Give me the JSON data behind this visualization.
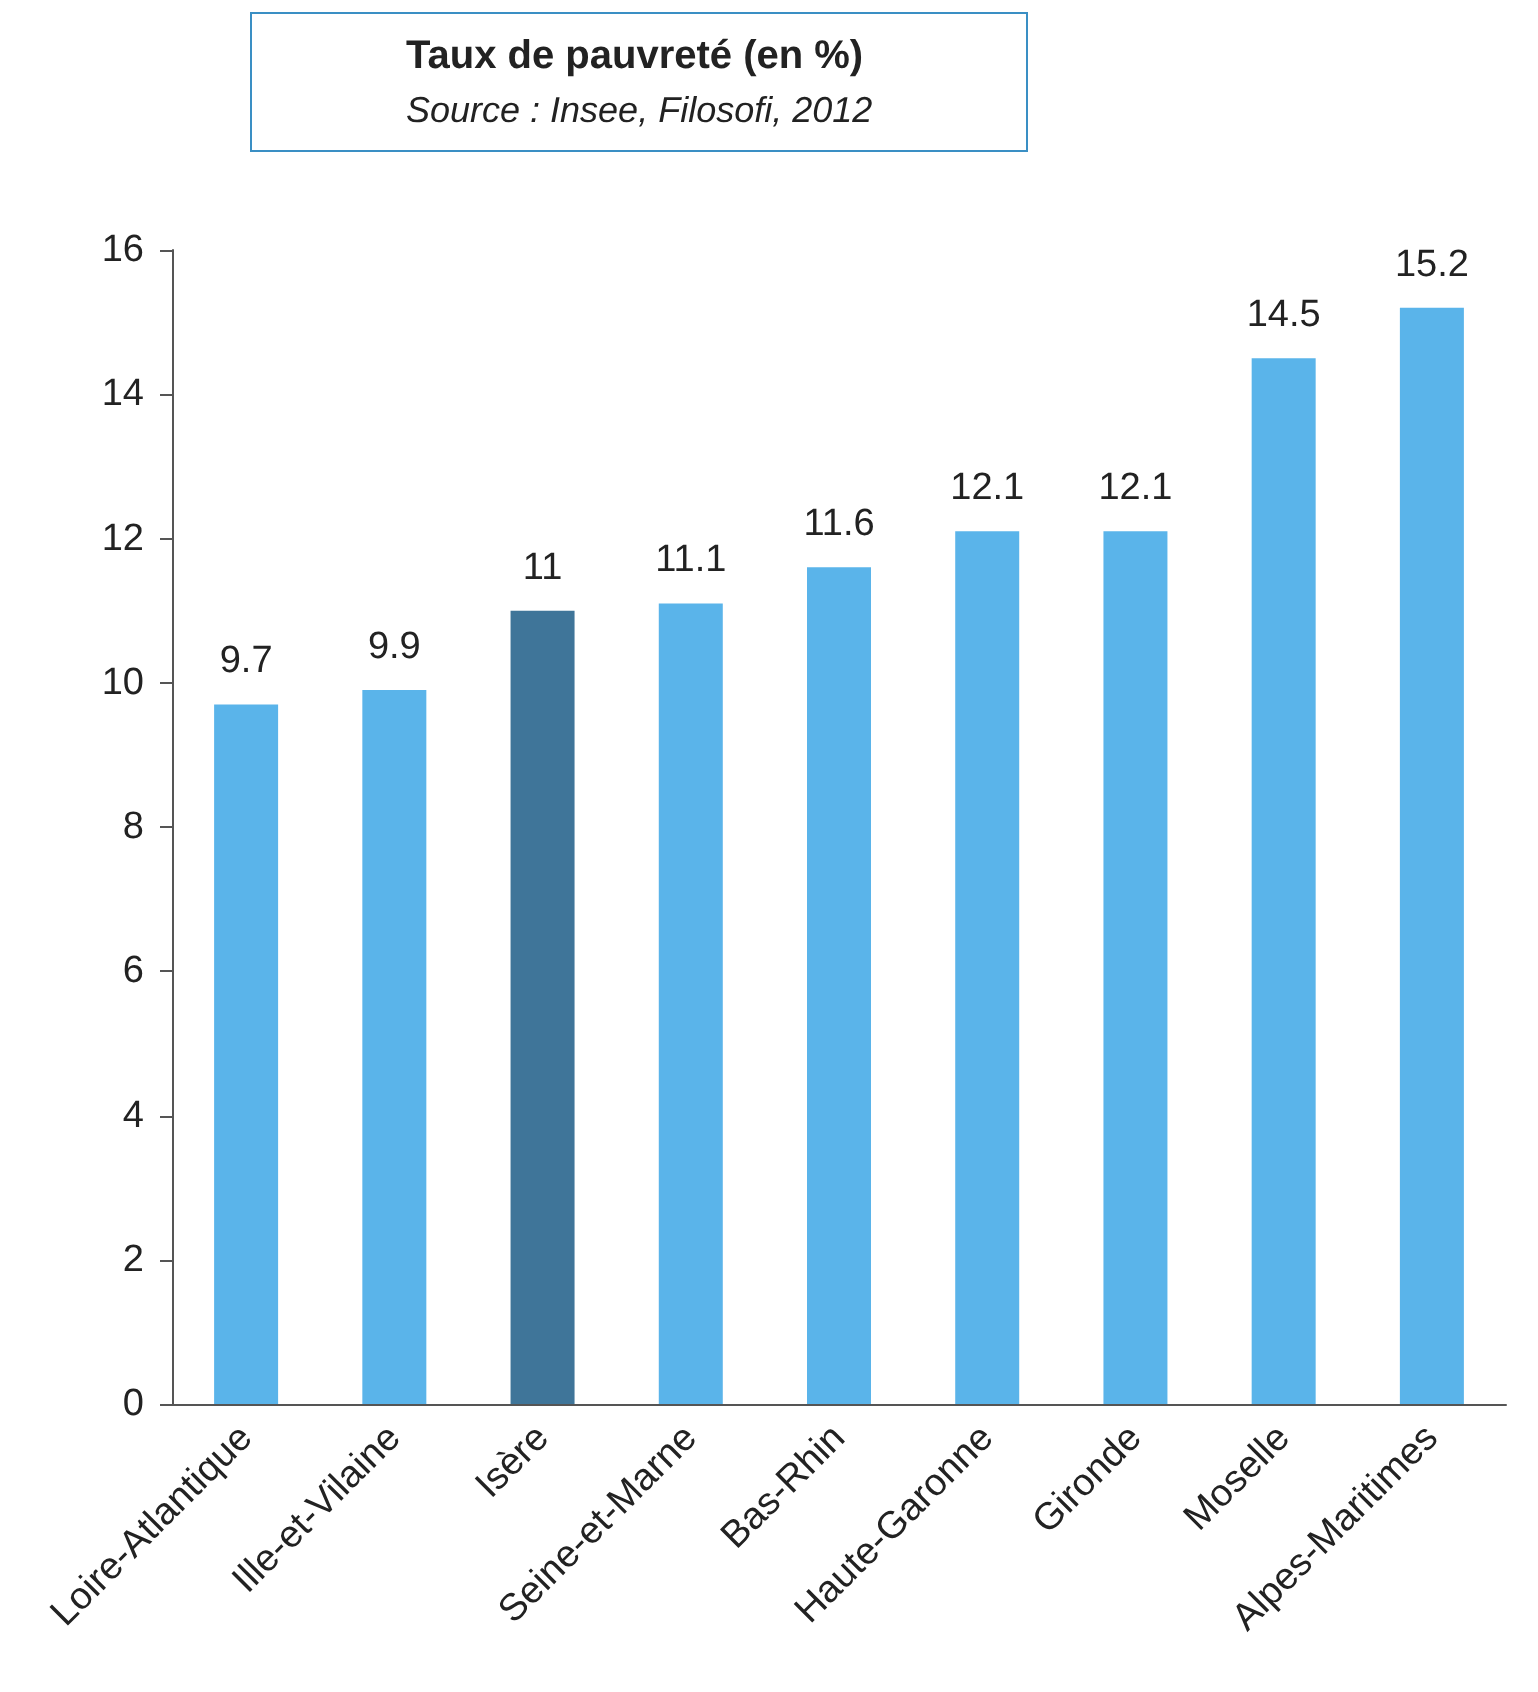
{
  "chart_data": {
    "type": "bar",
    "title": "Taux de pauvreté (en %)",
    "subtitle": "Source : Insee, Filosofi, 2012",
    "categories": [
      "Loire-Atlantique",
      "Ille-et-Vilaine",
      "Isère",
      "Seine-et-Marne",
      "Bas-Rhin",
      "Haute-Garonne",
      "Gironde",
      "Moselle",
      "Alpes-Maritimes"
    ],
    "values": [
      9.7,
      9.9,
      11,
      11.1,
      11.6,
      12.1,
      12.1,
      14.5,
      15.2
    ],
    "colors": [
      "#5ab4ea",
      "#5ab4ea",
      "#3f7599",
      "#5ab4ea",
      "#5ab4ea",
      "#5ab4ea",
      "#5ab4ea",
      "#5ab4ea",
      "#5ab4ea"
    ],
    "ylim": [
      0,
      16
    ],
    "yticks": [
      0,
      2,
      4,
      6,
      8,
      10,
      12,
      14,
      16
    ],
    "data_labels": true
  }
}
